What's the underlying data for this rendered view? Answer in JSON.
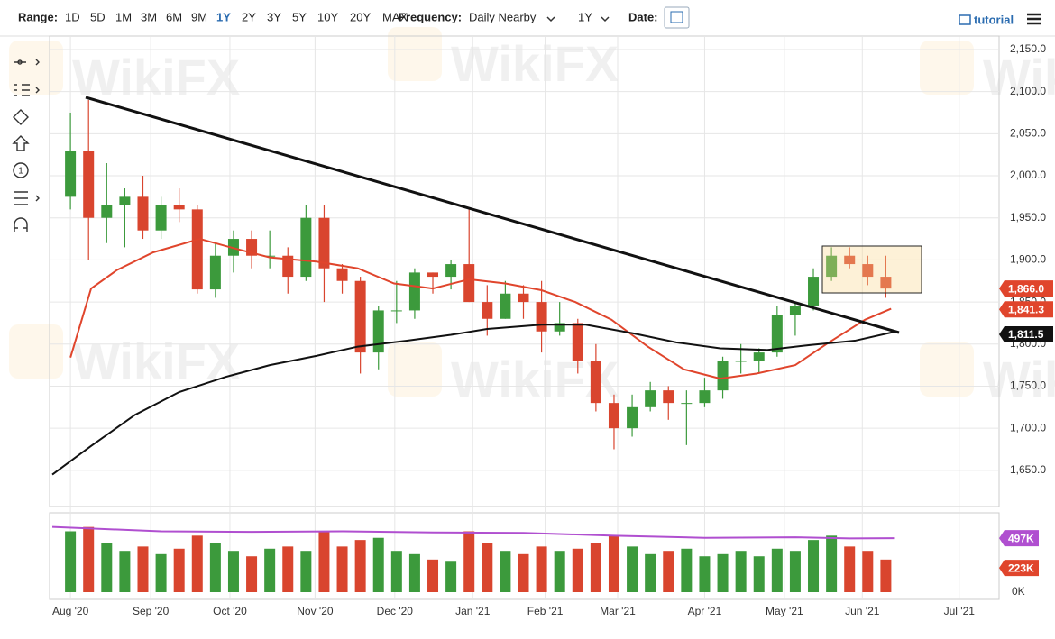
{
  "toolbar": {
    "range_label": "Range:",
    "ranges": [
      "1D",
      "5D",
      "1M",
      "3M",
      "6M",
      "9M",
      "1Y",
      "2Y",
      "3Y",
      "5Y",
      "10Y",
      "20Y",
      "MAX"
    ],
    "frequency_label": "Frequency:",
    "frequency": "Daily Nearby",
    "period": "1Y",
    "date_label": "Date:",
    "tutorial": "tutorial"
  },
  "watermark": "WikiFX",
  "chart_data": {
    "type": "candlestick",
    "categories": [
      null,
      null,
      null,
      null,
      null,
      null,
      null,
      null,
      null,
      null,
      null,
      null,
      null,
      null,
      null,
      null,
      null,
      null,
      null,
      null,
      null,
      null,
      null,
      null,
      null,
      null,
      null,
      null,
      null,
      null,
      null,
      null,
      null,
      null,
      null,
      null,
      null,
      null,
      null,
      null,
      null,
      null,
      null,
      null,
      null,
      null
    ],
    "open": [
      1975,
      2030,
      1950,
      1965,
      1975,
      1935,
      1965,
      1960,
      1865,
      1905,
      1925,
      1905,
      1905,
      1880,
      1950,
      1890,
      1875,
      1790,
      1840,
      1840,
      1885,
      1880,
      1895,
      1850,
      1830,
      1860,
      1850,
      1815,
      1825,
      1780,
      1730,
      1700,
      1725,
      1745,
      1730,
      1730,
      1745,
      1780,
      1780,
      1790,
      1835,
      1845,
      1880,
      1905,
      1895,
      1880
    ],
    "high": [
      2075,
      2090,
      2015,
      1985,
      2000,
      1975,
      1985,
      1965,
      1920,
      1935,
      1935,
      1935,
      1915,
      1965,
      1965,
      1895,
      1880,
      1845,
      1875,
      1890,
      1885,
      1900,
      1960,
      1870,
      1875,
      1870,
      1875,
      1850,
      1830,
      1800,
      1740,
      1740,
      1755,
      1750,
      1745,
      1760,
      1785,
      1800,
      1795,
      1845,
      1850,
      1890,
      1915,
      1915,
      1905,
      1905
    ],
    "low": [
      1960,
      1900,
      1920,
      1915,
      1925,
      1925,
      1945,
      1860,
      1855,
      1885,
      1890,
      1890,
      1860,
      1875,
      1850,
      1860,
      1765,
      1770,
      1825,
      1830,
      1860,
      1865,
      1850,
      1810,
      1830,
      1830,
      1790,
      1810,
      1765,
      1720,
      1675,
      1690,
      1720,
      1710,
      1680,
      1725,
      1735,
      1765,
      1765,
      1785,
      1810,
      1840,
      1875,
      1890,
      1870,
      1855
    ],
    "close": [
      2030,
      1950,
      1965,
      1975,
      1935,
      1965,
      1960,
      1865,
      1905,
      1925,
      1905,
      1905,
      1880,
      1950,
      1890,
      1875,
      1790,
      1840,
      1840,
      1885,
      1880,
      1895,
      1850,
      1830,
      1860,
      1850,
      1815,
      1825,
      1780,
      1730,
      1700,
      1725,
      1745,
      1730,
      1730,
      1745,
      1780,
      1780,
      1790,
      1835,
      1845,
      1880,
      1905,
      1895,
      1880,
      1866
    ],
    "up_color": "#3c9a3c",
    "down_color": "#d9452e",
    "ylim": [
      1607,
      2166
    ],
    "yticks": [
      {
        "value": 1650,
        "label": "1,650.0"
      },
      {
        "value": 1700,
        "label": "1,700.0"
      },
      {
        "value": 1750,
        "label": "1,750.0"
      },
      {
        "value": 1800,
        "label": "1,800.0"
      },
      {
        "value": 1850,
        "label": "1,850.0"
      },
      {
        "value": 1900,
        "label": "1,900.0"
      },
      {
        "value": 1950,
        "label": "1,950.0"
      },
      {
        "value": 2000,
        "label": "2,000.0"
      },
      {
        "value": 2050,
        "label": "2,050.0"
      },
      {
        "value": 2100,
        "label": "2,100.0"
      },
      {
        "value": 2150,
        "label": "2,150.0"
      }
    ],
    "xlim": [
      -1.15,
      51.25
    ],
    "xticks": [
      {
        "value": 0,
        "label": "Aug '20"
      },
      {
        "value": 4.43,
        "label": "Sep '20"
      },
      {
        "value": 8.8,
        "label": "Oct '20"
      },
      {
        "value": 13.5,
        "label": "Nov '20"
      },
      {
        "value": 17.9,
        "label": "Dec '20"
      },
      {
        "value": 22.2,
        "label": "Jan '21"
      },
      {
        "value": 26.2,
        "label": "Feb '21"
      },
      {
        "value": 30.2,
        "label": "Mar '21"
      },
      {
        "value": 35.0,
        "label": "Apr '21"
      },
      {
        "value": 39.4,
        "label": "May '21"
      },
      {
        "value": 43.7,
        "label": "Jun '21"
      },
      {
        "value": 49.05,
        "label": "Jul '21"
      }
    ],
    "grid": true,
    "series": [
      {
        "color": "#e0452c",
        "x": [
          0,
          1.14,
          2.57,
          4.57,
          7.14,
          9,
          11,
          13.57,
          15.86,
          17.86,
          20,
          22,
          24,
          26,
          27.86,
          29.86,
          31.86,
          33.86,
          35.86,
          37.86,
          40,
          41.86,
          43.86,
          45.29
        ],
        "values": [
          1784,
          1866,
          1888,
          1909,
          1925,
          1914,
          1903,
          1898,
          1890,
          1872,
          1866,
          1877,
          1872,
          1864,
          1850,
          1829,
          1797,
          1770,
          1759,
          1765,
          1775,
          1802,
          1829,
          1842
        ]
      },
      {
        "color": "#111111",
        "x": [
          -1,
          1.14,
          3.57,
          6,
          8.57,
          11,
          13.57,
          15.86,
          18.57,
          21,
          23,
          26,
          28.43,
          31,
          33.43,
          35.86,
          38.43,
          40.86,
          43.29,
          45.57
        ],
        "values": [
          1645,
          1679,
          1716,
          1743,
          1761,
          1775,
          1786,
          1797,
          1804,
          1811,
          1818,
          1823,
          1823,
          1813,
          1802,
          1795,
          1793,
          1799,
          1804,
          1815
        ]
      }
    ],
    "price_labels": [
      {
        "value": 1866.0,
        "label": "1,866.0",
        "color": "#e0452c"
      },
      {
        "value": 1841.3,
        "label": "1,841.3",
        "color": "#e0452c"
      },
      {
        "value": 1811.5,
        "label": "1,811.5",
        "color": "#111111"
      }
    ],
    "volume": {
      "values": [
        560,
        600,
        450,
        380,
        420,
        350,
        400,
        520,
        450,
        380,
        330,
        400,
        420,
        380,
        560,
        420,
        480,
        500,
        380,
        350,
        300,
        280,
        560,
        450,
        380,
        350,
        420,
        380,
        400,
        450,
        520,
        420,
        350,
        380,
        400,
        330,
        350,
        380,
        330,
        400,
        380,
        480,
        520,
        420,
        380,
        300
      ],
      "ylim": [
        0,
        730
      ],
      "yticks": [
        {
          "value": 0,
          "label": "0K"
        }
      ],
      "ma": {
        "color": "#b04fd0",
        "x": [
          -1,
          5,
          10,
          15,
          20,
          25,
          30,
          35,
          40,
          43,
          45.5
        ],
        "values": [
          600,
          560,
          555,
          560,
          550,
          545,
          520,
          500,
          505,
          495,
          497
        ]
      },
      "labels": [
        {
          "value": 497,
          "label": "497K",
          "color": "#b04fd0"
        },
        {
          "value": 223,
          "label": "223K",
          "color": "#e0452c"
        }
      ]
    }
  }
}
